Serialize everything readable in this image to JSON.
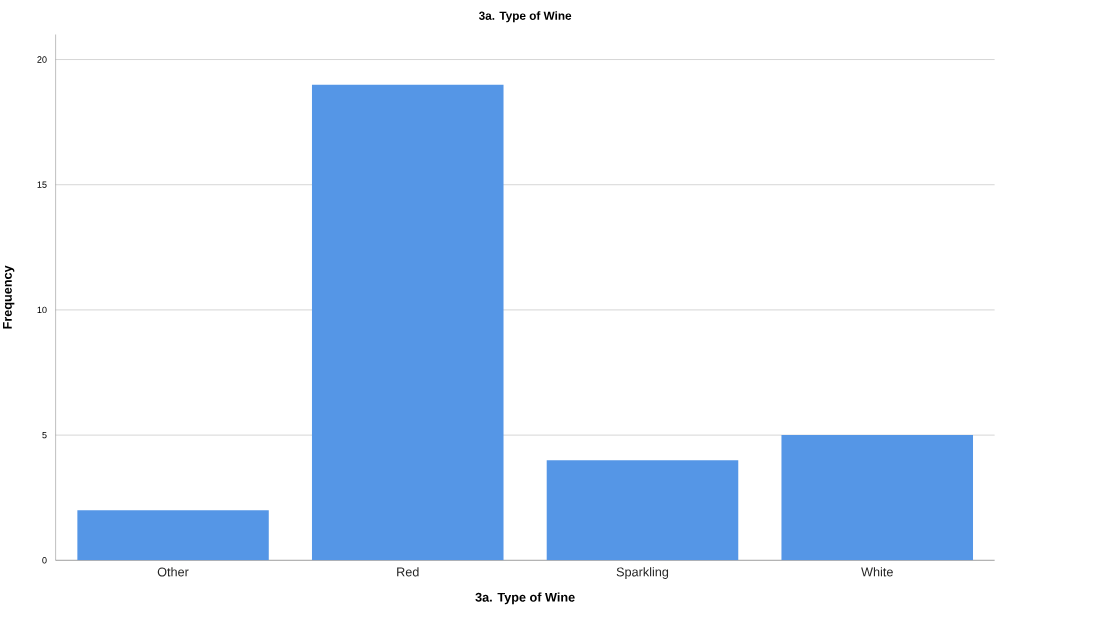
{
  "chart_data": {
    "type": "bar",
    "title": "3a. Type of Wine",
    "xlabel": "3a. Type of Wine",
    "ylabel": "Frequency",
    "categories": [
      "Other",
      "Red",
      "Sparkling",
      "White"
    ],
    "values": [
      2,
      19,
      4,
      5
    ],
    "color": "#5596e6",
    "ylim": [
      0,
      21
    ],
    "yticks": [
      0,
      5,
      10,
      15,
      20
    ],
    "grid": "y"
  }
}
